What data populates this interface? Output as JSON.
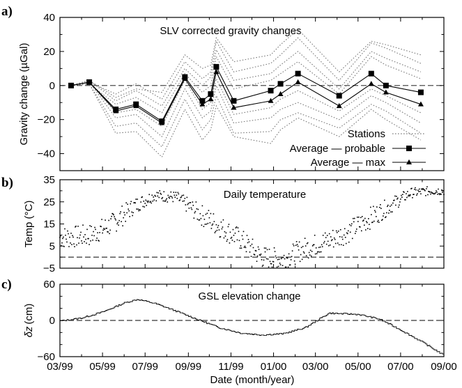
{
  "figure": {
    "xlabel": "Date (month/year)",
    "x_tick_labels": [
      "03/99",
      "05/99",
      "07/99",
      "09/99",
      "11/99",
      "01/00",
      "03/00",
      "05/00",
      "07/00",
      "09/00"
    ]
  },
  "chart_data": [
    {
      "panel": "a)",
      "type": "line",
      "title": "SLV corrected gravity changes",
      "ylabel": "Gravity change (µGal)",
      "xlim": [
        "1999-03-01",
        "2000-09-01"
      ],
      "ylim": [
        -50,
        40
      ],
      "yticks": [
        -40,
        -20,
        0,
        20,
        40
      ],
      "grid": false,
      "legend_position": "bottom-right",
      "reference_line": 0,
      "x": [
        "1999-03-17",
        "1999-04-12",
        "1999-05-20",
        "1999-06-18",
        "1999-07-25",
        "1999-08-27",
        "1999-09-21",
        "1999-10-03",
        "1999-10-11",
        "1999-11-05",
        "1999-12-28",
        "2000-01-11",
        "2000-02-05",
        "2000-04-04",
        "2000-05-20",
        "2000-06-10",
        "2000-07-30"
      ],
      "series": [
        {
          "name": "probable",
          "legend": "Average — probable",
          "style": "solid",
          "marker": "square",
          "values": [
            0,
            2,
            -14,
            -11,
            -21,
            5,
            -9,
            -5,
            11,
            -9,
            -3,
            1,
            7,
            -6,
            7,
            0,
            -4
          ]
        },
        {
          "name": "max",
          "legend": "Average — max",
          "style": "solid",
          "marker": "triangle",
          "values": [
            0,
            2,
            -15,
            -12,
            -22,
            4,
            -11,
            -8,
            8,
            -13,
            -9,
            -5,
            2,
            -12,
            1,
            -4,
            -11
          ]
        },
        {
          "name": "Stations",
          "legend": "Stations",
          "style": "dotted",
          "marker": "none",
          "lines": [
            [
              0,
              2,
              -5,
              1,
              -8,
              14,
              4,
              8,
              26,
              8,
              13,
              18,
              28,
              3,
              25,
              22,
              13
            ],
            [
              0,
              3,
              -9,
              -3,
              -12,
              10,
              0,
              5,
              21,
              3,
              7,
              12,
              20,
              -2,
              20,
              16,
              8
            ],
            [
              0,
              1,
              -11,
              -7,
              -16,
              7,
              -4,
              0,
              17,
              -2,
              3,
              7,
              14,
              -5,
              17,
              12,
              4
            ],
            [
              0,
              2,
              -16,
              -14,
              -24,
              3,
              -14,
              -10,
              4,
              -17,
              -13,
              -8,
              -3,
              -15,
              -2,
              -6,
              -16
            ],
            [
              0,
              2,
              -19,
              -17,
              -30,
              -2,
              -19,
              -15,
              0,
              -22,
              -19,
              -14,
              -10,
              -20,
              -6,
              -10,
              -22
            ],
            [
              0,
              1,
              -24,
              -22,
              -36,
              -8,
              -26,
              -20,
              -6,
              -28,
              -27,
              -20,
              -16,
              -25,
              -11,
              -15,
              -28
            ],
            [
              0,
              1,
              -28,
              -27,
              -42,
              -14,
              -32,
              -26,
              -12,
              -30,
              -34,
              -26,
              -19,
              -30,
              -14,
              -20,
              -32
            ],
            [
              0,
              3,
              -7,
              -2,
              -4,
              18,
              10,
              12,
              28,
              14,
              18,
              24,
              33,
              8,
              26,
              24,
              18
            ]
          ]
        }
      ]
    },
    {
      "panel": "b)",
      "type": "scatter",
      "title": "Daily temperature",
      "ylabel": "Temp (°C)",
      "xlim": [
        "1999-03-01",
        "2000-09-01"
      ],
      "ylim": [
        -5,
        35
      ],
      "yticks": [
        -5,
        5,
        15,
        25,
        35
      ],
      "reference_line": 0,
      "monthly_mean_points": [
        {
          "x": "1999-03-15",
          "y": 9
        },
        {
          "x": "1999-04-15",
          "y": 10
        },
        {
          "x": "1999-05-15",
          "y": 15
        },
        {
          "x": "1999-06-15",
          "y": 23
        },
        {
          "x": "1999-07-15",
          "y": 28
        },
        {
          "x": "1999-08-15",
          "y": 27
        },
        {
          "x": "1999-09-15",
          "y": 20
        },
        {
          "x": "1999-10-15",
          "y": 14
        },
        {
          "x": "1999-11-15",
          "y": 8
        },
        {
          "x": "1999-12-15",
          "y": 0
        },
        {
          "x": "2000-01-15",
          "y": -1
        },
        {
          "x": "2000-02-15",
          "y": 4
        },
        {
          "x": "2000-03-15",
          "y": 7
        },
        {
          "x": "2000-04-15",
          "y": 11
        },
        {
          "x": "2000-05-15",
          "y": 17
        },
        {
          "x": "2000-06-15",
          "y": 23
        },
        {
          "x": "2000-07-15",
          "y": 29
        },
        {
          "x": "2000-08-15",
          "y": 30
        }
      ]
    },
    {
      "panel": "c)",
      "type": "line",
      "title": "GSL elevation change",
      "ylabel_symbol": "δz",
      "ylabel_unit": "(cm)",
      "xlim": [
        "1999-03-01",
        "2000-09-01"
      ],
      "ylim": [
        -60,
        60
      ],
      "yticks": [
        -60,
        0,
        60
      ],
      "reference_line": 0,
      "points": [
        {
          "x": "1999-03-01",
          "y": -1
        },
        {
          "x": "1999-04-01",
          "y": 4
        },
        {
          "x": "1999-05-01",
          "y": 14
        },
        {
          "x": "1999-06-01",
          "y": 29
        },
        {
          "x": "1999-06-20",
          "y": 35
        },
        {
          "x": "1999-07-15",
          "y": 28
        },
        {
          "x": "1999-08-15",
          "y": 15
        },
        {
          "x": "1999-09-15",
          "y": 1
        },
        {
          "x": "1999-10-15",
          "y": -12
        },
        {
          "x": "1999-11-15",
          "y": -21
        },
        {
          "x": "1999-12-15",
          "y": -24
        },
        {
          "x": "2000-01-15",
          "y": -22
        },
        {
          "x": "2000-02-15",
          "y": -12
        },
        {
          "x": "2000-03-20",
          "y": 12
        },
        {
          "x": "2000-05-01",
          "y": 10
        },
        {
          "x": "2000-06-01",
          "y": 2
        },
        {
          "x": "2000-07-01",
          "y": -16
        },
        {
          "x": "2000-08-01",
          "y": -36
        },
        {
          "x": "2000-09-01",
          "y": -58
        }
      ]
    }
  ]
}
